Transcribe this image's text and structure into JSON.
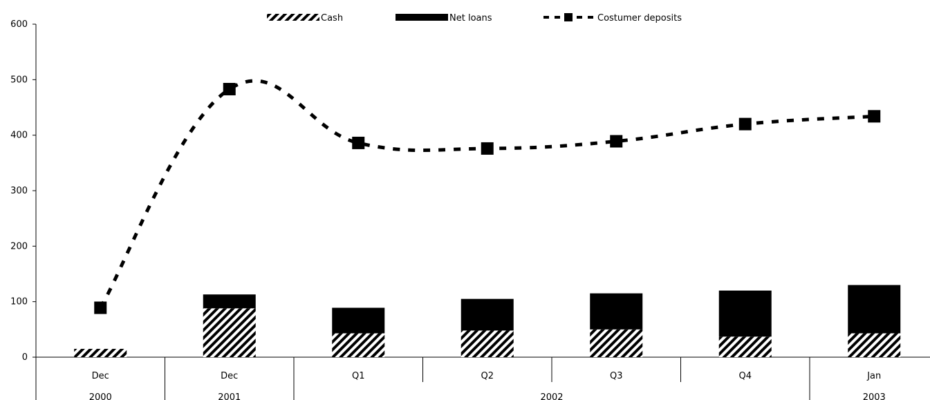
{
  "chart_data": {
    "type": "bar",
    "categories": [
      "Dec",
      "Dec",
      "Q1",
      "Q2",
      "Q3",
      "Q4",
      "Jan"
    ],
    "category_groups": [
      {
        "label": "2000",
        "span": 1
      },
      {
        "label": "2001",
        "span": 1
      },
      {
        "label": "2002",
        "span": 4
      },
      {
        "label": "2003",
        "span": 1
      }
    ],
    "series": [
      {
        "name": "Cash",
        "kind": "bar",
        "stacked": true,
        "values": [
          15,
          88,
          43,
          48,
          50,
          37,
          43
        ]
      },
      {
        "name": "Net loans",
        "kind": "bar",
        "stacked": true,
        "values": [
          0,
          25,
          46,
          57,
          65,
          83,
          87
        ]
      },
      {
        "name": "Costumer deposits",
        "kind": "line",
        "values": [
          89,
          483,
          386,
          376,
          389,
          420,
          434
        ]
      }
    ],
    "ylim": [
      0,
      600
    ],
    "yticks": [
      0,
      100,
      200,
      300,
      400,
      500,
      600
    ],
    "legend_position": "top",
    "grid": false
  }
}
